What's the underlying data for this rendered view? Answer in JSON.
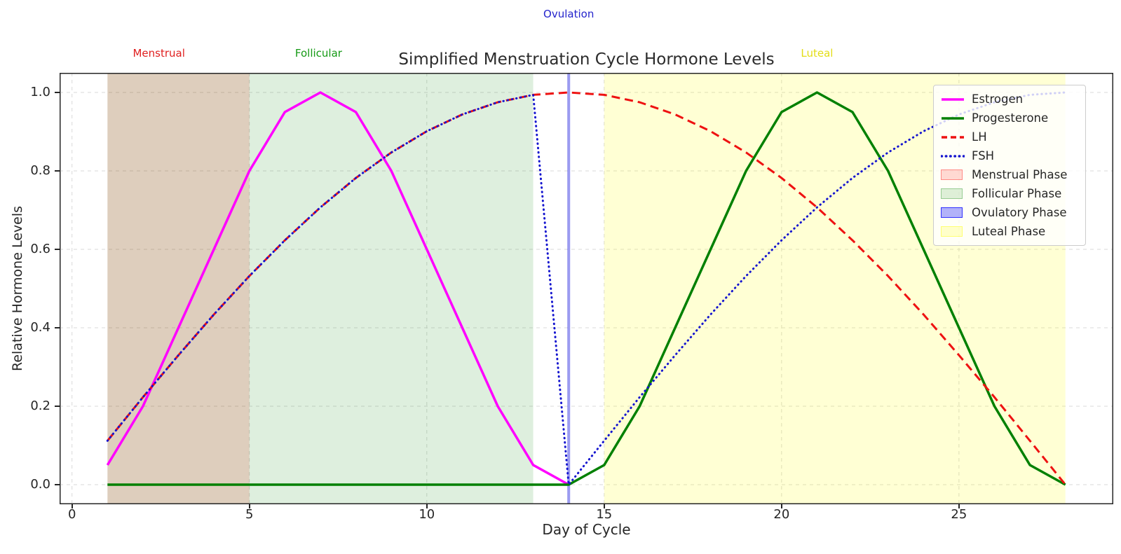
{
  "figure": {
    "background": "#ffffff",
    "text_color": "#262626",
    "grid_color": "#d9d9d9",
    "spine_color": "#262626"
  },
  "chart_data": {
    "type": "line",
    "title": "Simplified Menstruation Cycle Hormone Levels",
    "xlabel": "Day of Cycle",
    "ylabel": "Relative Hormone Levels",
    "xlim": [
      -0.35,
      29.35
    ],
    "ylim": [
      -0.05,
      1.05
    ],
    "grid": true,
    "x_ticks": [
      {
        "value": 0,
        "label": "0"
      },
      {
        "value": 5,
        "label": "5"
      },
      {
        "value": 10,
        "label": "10"
      },
      {
        "value": 15,
        "label": "15"
      },
      {
        "value": 20,
        "label": "20"
      },
      {
        "value": 25,
        "label": "25"
      }
    ],
    "y_ticks": [
      {
        "value": 0.0,
        "label": "0.0"
      },
      {
        "value": 0.2,
        "label": "0.2"
      },
      {
        "value": 0.4,
        "label": "0.4"
      },
      {
        "value": 0.6,
        "label": "0.6"
      },
      {
        "value": 0.8,
        "label": "0.8"
      },
      {
        "value": 1.0,
        "label": "1.0"
      }
    ],
    "series": [
      {
        "name": "Estrogen",
        "color": "#ff00ff",
        "style": "solid",
        "width": 3.5,
        "x": [
          1,
          2,
          3,
          4,
          5,
          6,
          7,
          8,
          9,
          10,
          11,
          12,
          13,
          14
        ],
        "y": [
          0.05,
          0.2,
          0.4,
          0.6,
          0.8,
          0.95,
          1.0,
          0.95,
          0.8,
          0.6,
          0.4,
          0.2,
          0.05,
          0.0
        ]
      },
      {
        "name": "Progesterone",
        "color": "#008000",
        "style": "solid",
        "width": 3.5,
        "x": [
          1,
          2,
          3,
          4,
          5,
          6,
          7,
          8,
          9,
          10,
          11,
          12,
          13,
          14,
          15,
          16,
          17,
          18,
          19,
          20,
          21,
          22,
          23,
          24,
          25,
          26,
          27,
          28
        ],
        "y": [
          0,
          0,
          0,
          0,
          0,
          0,
          0,
          0,
          0,
          0,
          0,
          0,
          0,
          0,
          0.05,
          0.2,
          0.4,
          0.6,
          0.8,
          0.95,
          1.0,
          0.95,
          0.8,
          0.6,
          0.4,
          0.2,
          0.05,
          0.0
        ]
      },
      {
        "name": "LH",
        "color": "#ee1111",
        "style": "dashed",
        "width": 3,
        "x": [
          1,
          2,
          3,
          4,
          5,
          6,
          7,
          8,
          9,
          10,
          11,
          12,
          13,
          14,
          15,
          16,
          17,
          18,
          19,
          20,
          21,
          22,
          23,
          24,
          25,
          26,
          27,
          28
        ],
        "y": [
          0.112,
          0.223,
          0.33,
          0.434,
          0.532,
          0.623,
          0.707,
          0.782,
          0.847,
          0.901,
          0.944,
          0.975,
          0.994,
          1.0,
          0.994,
          0.975,
          0.944,
          0.901,
          0.847,
          0.782,
          0.707,
          0.623,
          0.532,
          0.434,
          0.33,
          0.223,
          0.112,
          0.0
        ]
      },
      {
        "name": "FSH",
        "color": "#1515cf",
        "style": "dotted",
        "width": 3,
        "x": [
          1,
          2,
          3,
          4,
          5,
          6,
          7,
          8,
          9,
          10,
          11,
          12,
          13,
          14,
          15,
          16,
          17,
          18,
          19,
          20,
          21,
          22,
          23,
          24,
          25,
          26,
          27,
          28
        ],
        "y": [
          0.112,
          0.223,
          0.33,
          0.434,
          0.532,
          0.623,
          0.707,
          0.782,
          0.847,
          0.901,
          0.944,
          0.975,
          0.994,
          0.0,
          0.112,
          0.223,
          0.33,
          0.434,
          0.532,
          0.623,
          0.707,
          0.782,
          0.847,
          0.901,
          0.944,
          0.975,
          0.994,
          1.0
        ]
      }
    ],
    "phases": [
      {
        "name": "Menstrual Phase",
        "start": 1,
        "end": 5,
        "color": "#ff0000",
        "alpha": 0.15
      },
      {
        "name": "Follicular Phase",
        "start": 1,
        "end": 13,
        "color": "#008000",
        "alpha": 0.13
      },
      {
        "name": "Ovulatory Phase",
        "start": 13.96,
        "end": 14.04,
        "color": "#2222dd",
        "alpha": 0.45
      },
      {
        "name": "Luteal Phase",
        "start": 15,
        "end": 28,
        "color": "#ffff00",
        "alpha": 0.17
      }
    ],
    "annotations": [
      {
        "text": "Menstrual",
        "x": 2.45,
        "y": 1.1,
        "color": "#e01f1f"
      },
      {
        "text": "Follicular",
        "x": 6.95,
        "y": 1.1,
        "color": "#159a15"
      },
      {
        "text": "Ovulation",
        "x": 14.0,
        "y": 1.2,
        "color": "#2424cc"
      },
      {
        "text": "Luteal",
        "x": 21.0,
        "y": 1.1,
        "color": "#e3dd16"
      }
    ],
    "legend": {
      "position": "upper right",
      "entries": [
        {
          "label": "Estrogen",
          "sample": "line",
          "style": "solid",
          "color": "#ff00ff"
        },
        {
          "label": "Progesterone",
          "sample": "line",
          "style": "solid",
          "color": "#008000"
        },
        {
          "label": "LH",
          "sample": "line",
          "style": "dashed",
          "color": "#ee1111"
        },
        {
          "label": "FSH",
          "sample": "line",
          "style": "dotted",
          "color": "#1515cf"
        },
        {
          "label": "Menstrual Phase",
          "sample": "patch",
          "color": "#ff0000",
          "alpha": 0.15
        },
        {
          "label": "Follicular Phase",
          "sample": "patch",
          "color": "#008000",
          "alpha": 0.13
        },
        {
          "label": "Ovulatory Phase",
          "sample": "patch",
          "color": "#0000ff",
          "alpha": 0.3
        },
        {
          "label": "Luteal Phase",
          "sample": "patch",
          "color": "#ffff00",
          "alpha": 0.18
        }
      ]
    }
  }
}
